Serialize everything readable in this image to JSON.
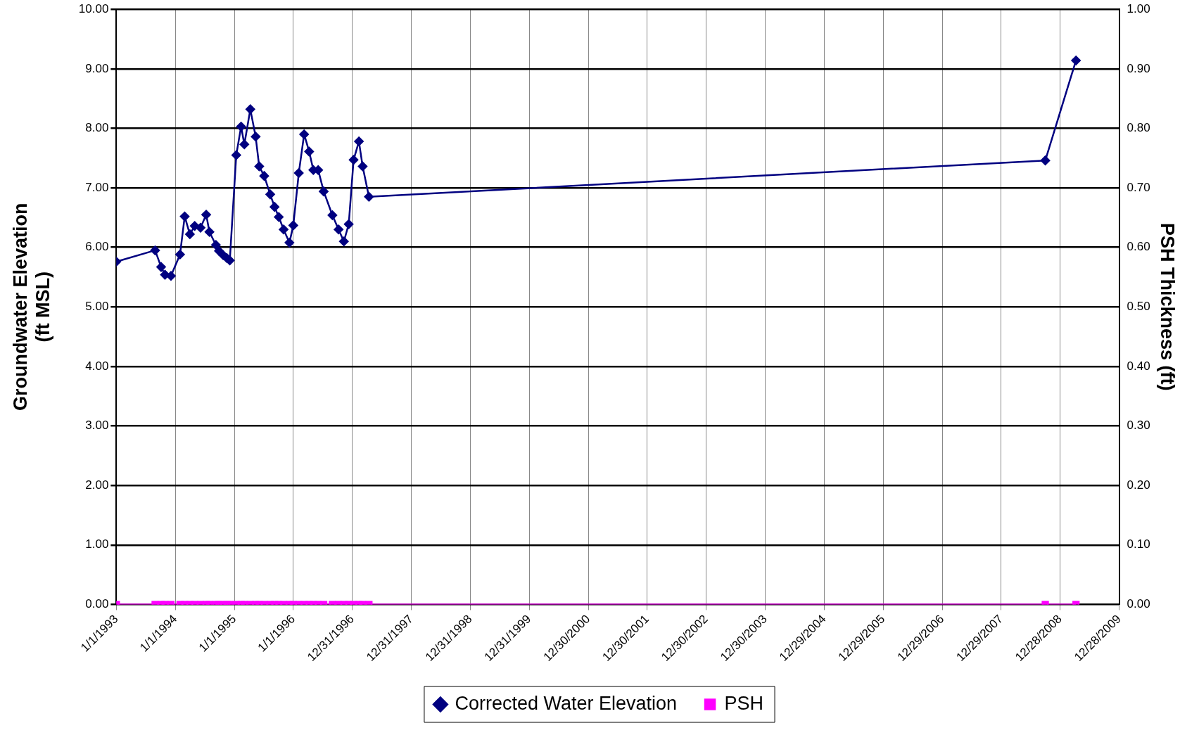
{
  "chart_data": {
    "type": "line",
    "xlabel": null,
    "ylabel": "Groundwater Elevation (ft MSL)",
    "y2label": "PSH Thickness (ft)",
    "xlim": [
      "1993-01-01",
      "2009-12-28"
    ],
    "xticks": [
      {
        "value": "1993-01-01",
        "label": "1/1/1993"
      },
      {
        "value": "1994-01-01",
        "label": "1/1/1994"
      },
      {
        "value": "1995-01-01",
        "label": "1/1/1995"
      },
      {
        "value": "1996-01-01",
        "label": "1/1/1996"
      },
      {
        "value": "1996-12-31",
        "label": "12/31/1996"
      },
      {
        "value": "1997-12-31",
        "label": "12/31/1997"
      },
      {
        "value": "1998-12-31",
        "label": "12/31/1998"
      },
      {
        "value": "1999-12-31",
        "label": "12/31/1999"
      },
      {
        "value": "2000-12-30",
        "label": "12/30/2000"
      },
      {
        "value": "2001-12-30",
        "label": "12/30/2001"
      },
      {
        "value": "2002-12-30",
        "label": "12/30/2002"
      },
      {
        "value": "2003-12-30",
        "label": "12/30/2003"
      },
      {
        "value": "2004-12-29",
        "label": "12/29/2004"
      },
      {
        "value": "2005-12-29",
        "label": "12/29/2005"
      },
      {
        "value": "2006-12-29",
        "label": "12/29/2006"
      },
      {
        "value": "2007-12-29",
        "label": "12/29/2007"
      },
      {
        "value": "2008-12-28",
        "label": "12/28/2008"
      },
      {
        "value": "2009-12-28",
        "label": "12/28/2009"
      }
    ],
    "ylim": [
      0,
      10
    ],
    "yticks": [
      {
        "value": 0,
        "label": "0.00"
      },
      {
        "value": 1,
        "label": "1.00"
      },
      {
        "value": 2,
        "label": "2.00"
      },
      {
        "value": 3,
        "label": "3.00"
      },
      {
        "value": 4,
        "label": "4.00"
      },
      {
        "value": 5,
        "label": "5.00"
      },
      {
        "value": 6,
        "label": "6.00"
      },
      {
        "value": 7,
        "label": "7.00"
      },
      {
        "value": 8,
        "label": "8.00"
      },
      {
        "value": 9,
        "label": "9.00"
      },
      {
        "value": 10,
        "label": "10.00"
      }
    ],
    "y2lim": [
      0,
      1
    ],
    "y2ticks": [
      {
        "value": 0,
        "label": "0.00"
      },
      {
        "value": 0.1,
        "label": "0.10"
      },
      {
        "value": 0.2,
        "label": "0.20"
      },
      {
        "value": 0.3,
        "label": "0.30"
      },
      {
        "value": 0.4,
        "label": "0.40"
      },
      {
        "value": 0.5,
        "label": "0.50"
      },
      {
        "value": 0.6,
        "label": "0.60"
      },
      {
        "value": 0.7,
        "label": "0.70"
      },
      {
        "value": 0.8,
        "label": "0.80"
      },
      {
        "value": 0.9,
        "label": "0.90"
      },
      {
        "value": 1,
        "label": "1.00"
      }
    ],
    "grid": true,
    "legend": "bottom",
    "line_style": "solid",
    "series": [
      {
        "name": "Corrected Water Elevation",
        "color": "#000080",
        "marker": "diamond",
        "x": [
          "1993-01-01",
          "1993-08-29",
          "1993-10-05",
          "1993-10-29",
          "1993-12-05",
          "1994-01-30",
          "1994-02-28",
          "1994-04-01",
          "1994-05-01",
          "1994-06-06",
          "1994-07-11",
          "1994-07-31",
          "1994-09-09",
          "1994-09-28",
          "1994-10-24",
          "1994-11-16",
          "1994-12-04",
          "1995-01-13",
          "1995-02-12",
          "1995-03-04",
          "1995-04-10",
          "1995-05-13",
          "1995-06-04",
          "1995-07-05",
          "1995-08-11",
          "1995-09-07",
          "1995-10-03",
          "1995-11-02",
          "1995-12-08",
          "1996-01-01",
          "1996-02-04",
          "1996-03-08",
          "1996-04-08",
          "1996-05-04",
          "1996-06-03",
          "1996-07-07",
          "1996-08-30",
          "1996-10-07",
          "1996-11-09",
          "1996-12-09",
          "1997-01-08",
          "1997-02-10",
          "1997-03-05",
          "1997-04-13",
          "2008-09-27",
          "2009-04-05"
        ],
        "values": [
          5.76,
          5.95,
          5.67,
          5.54,
          5.52,
          5.88,
          6.52,
          6.22,
          6.36,
          6.33,
          6.55,
          6.26,
          6.04,
          5.94,
          5.87,
          5.82,
          5.78,
          7.55,
          8.03,
          7.73,
          8.32,
          7.86,
          7.36,
          7.2,
          6.89,
          6.68,
          6.51,
          6.3,
          6.08,
          6.37,
          7.25,
          7.9,
          7.61,
          7.3,
          7.3,
          6.94,
          6.54,
          6.3,
          6.1,
          6.39,
          7.47,
          7.78,
          7.36,
          6.85,
          7.46,
          9.14
        ]
      },
      {
        "name": "PSH",
        "color": "#ff00ff",
        "marker": "square",
        "axis": "y2",
        "x": [
          "1993-01-01",
          "1993-08-29",
          "1993-10-05",
          "1993-10-29",
          "1993-12-05",
          "1994-01-30",
          "1994-02-28",
          "1994-04-01",
          "1994-05-01",
          "1994-06-06",
          "1994-07-11",
          "1994-07-31",
          "1994-09-09",
          "1994-09-28",
          "1994-10-24",
          "1994-11-16",
          "1994-12-04",
          "1995-01-13",
          "1995-02-12",
          "1995-03-04",
          "1995-04-10",
          "1995-05-13",
          "1995-06-04",
          "1995-07-05",
          "1995-08-11",
          "1995-09-07",
          "1995-10-03",
          "1995-11-02",
          "1995-12-08",
          "1996-01-01",
          "1996-02-04",
          "1996-03-08",
          "1996-04-08",
          "1996-05-04",
          "1996-06-03",
          "1996-07-07",
          "1996-08-30",
          "1996-10-07",
          "1996-11-09",
          "1996-12-09",
          "1997-01-08",
          "1997-02-10",
          "1997-03-05",
          "1997-04-13",
          "2008-09-27",
          "2009-04-05"
        ],
        "values": [
          0,
          0,
          0,
          0,
          0,
          0,
          0,
          0,
          0,
          0,
          0,
          0,
          0,
          0,
          0,
          0,
          0,
          0,
          0,
          0,
          0,
          0,
          0,
          0,
          0,
          0,
          0,
          0,
          0,
          0,
          0,
          0,
          0,
          0,
          0,
          0,
          0,
          0,
          0,
          0,
          0,
          0,
          0,
          0,
          0,
          0
        ]
      }
    ]
  }
}
